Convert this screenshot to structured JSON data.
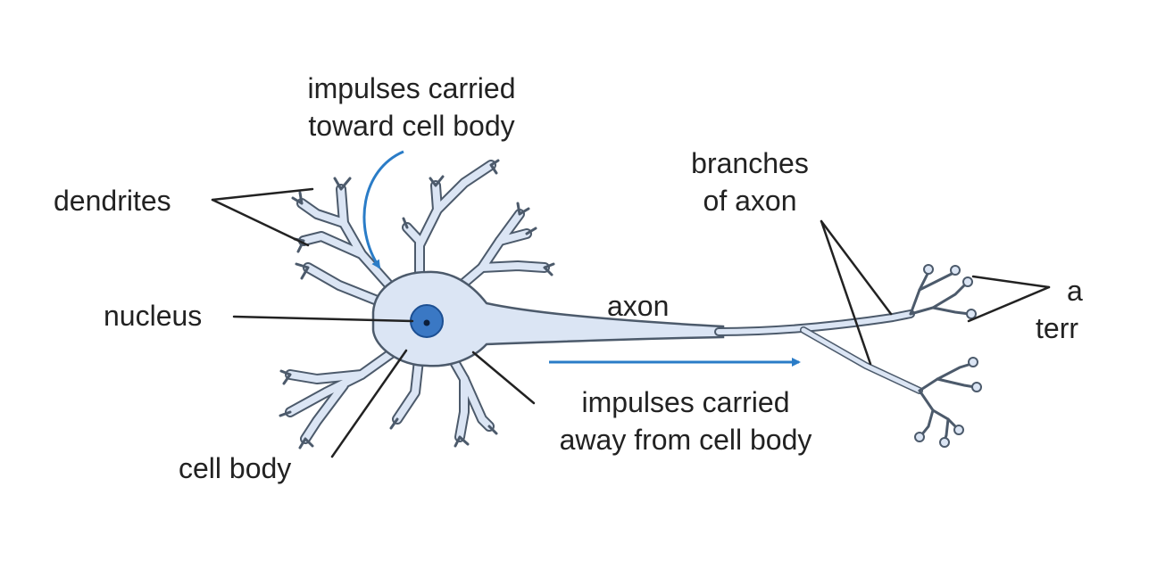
{
  "labels": {
    "impulses_toward_line1": "impulses carried",
    "impulses_toward_line2": "toward cell body",
    "dendrites": "dendrites",
    "branches_line1": "branches",
    "branches_line2": "of axon",
    "nucleus": "nucleus",
    "axon": "axon",
    "terminals_line1": "a",
    "terminals_line2": "terr",
    "impulses_away_line1": "impulses carried",
    "impulses_away_line2": "away from cell body",
    "cell_body": "cell body"
  },
  "colors": {
    "cell_fill": "#dbe5f4",
    "cell_outline": "#4c5a6b",
    "nucleus_fill": "#3a78c4",
    "nucleus_outline": "#1c4f92",
    "arrow": "#2a7cc7",
    "leader_line": "#222222",
    "text": "#222222"
  }
}
